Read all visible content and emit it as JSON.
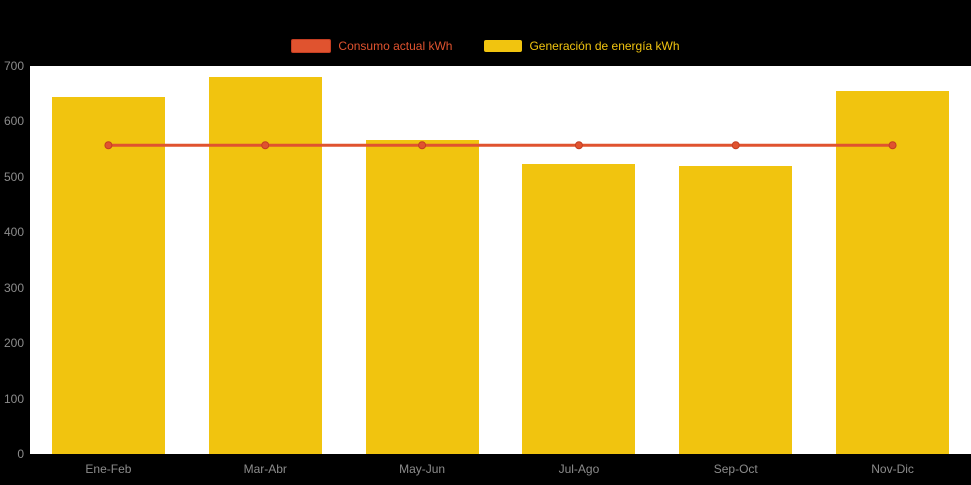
{
  "chart_data": {
    "type": "bar",
    "title": "",
    "categories": [
      "Ene-Feb",
      "Mar-Abr",
      "May-Jun",
      "Jul-Ago",
      "Sep-Oct",
      "Nov-Dic"
    ],
    "series": [
      {
        "name": "Consumo actual kWh",
        "type": "line",
        "color": "#E0532F",
        "border": "#C43E22",
        "values": [
          557,
          557,
          557,
          557,
          557,
          557
        ]
      },
      {
        "name": "Generación de energía kWh",
        "type": "bar",
        "color": "#F1C40F",
        "values": [
          645,
          680,
          567,
          524,
          520,
          655
        ]
      }
    ],
    "xlabel": "",
    "ylabel": "",
    "ylim": [
      0,
      700
    ],
    "yticks": [
      0,
      100,
      200,
      300,
      400,
      500,
      600,
      700
    ],
    "grid": false,
    "legend_position": "top",
    "axis_text_color": "#8C8C8C",
    "plot_background": "#ffffff",
    "page_background": "#000000"
  }
}
